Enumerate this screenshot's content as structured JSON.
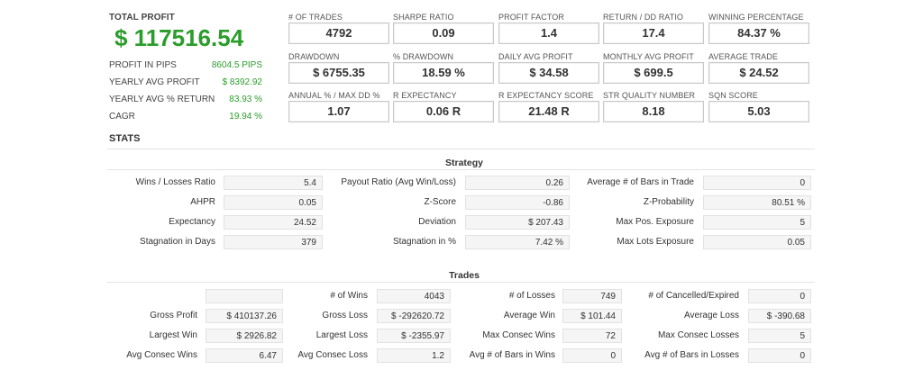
{
  "summary": {
    "total_profit_label": "TOTAL PROFIT",
    "total_profit_value": "$ 117516.54",
    "rows": [
      {
        "label": "PROFIT IN PIPS",
        "value": "8604.5 PIPS"
      },
      {
        "label": "YEARLY AVG PROFIT",
        "value": "$ 8392.92"
      },
      {
        "label": "YEARLY AVG % RETURN",
        "value": "83.93 %"
      },
      {
        "label": "CAGR",
        "value": "19.94 %"
      }
    ]
  },
  "metrics": [
    {
      "label": "# OF TRADES",
      "value": "4792"
    },
    {
      "label": "SHARPE RATIO",
      "value": "0.09"
    },
    {
      "label": "PROFIT FACTOR",
      "value": "1.4"
    },
    {
      "label": "RETURN / DD RATIO",
      "value": "17.4"
    },
    {
      "label": "WINNING PERCENTAGE",
      "value": "84.37 %"
    },
    {
      "label": "DRAWDOWN",
      "value": "$ 6755.35"
    },
    {
      "label": "% DRAWDOWN",
      "value": "18.59 %"
    },
    {
      "label": "DAILY AVG PROFIT",
      "value": "$ 34.58"
    },
    {
      "label": "MONTHLY AVG PROFIT",
      "value": "$ 699.5"
    },
    {
      "label": "AVERAGE TRADE",
      "value": "$ 24.52"
    },
    {
      "label": "ANNUAL % / MAX DD %",
      "value": "1.07"
    },
    {
      "label": "R EXPECTANCY",
      "value": "0.06 R"
    },
    {
      "label": "R EXPECTANCY SCORE",
      "value": "21.48 R"
    },
    {
      "label": "STR QUALITY NUMBER",
      "value": "8.18"
    },
    {
      "label": "SQN SCORE",
      "value": "5.03"
    }
  ],
  "stats_title": "STATS",
  "strategy": {
    "title": "Strategy",
    "rows": [
      [
        {
          "label": "Wins / Losses Ratio",
          "value": "5.4"
        },
        {
          "label": "Payout Ratio (Avg Win/Loss)",
          "value": "0.26"
        },
        {
          "label": "Average # of Bars in Trade",
          "value": "0"
        }
      ],
      [
        {
          "label": "AHPR",
          "value": "0.05"
        },
        {
          "label": "Z-Score",
          "value": "-0.86"
        },
        {
          "label": "Z-Probability",
          "value": "80.51 %"
        }
      ],
      [
        {
          "label": "Expectancy",
          "value": "24.52"
        },
        {
          "label": "Deviation",
          "value": "$ 207.43"
        },
        {
          "label": "Max Pos. Exposure",
          "value": "5"
        }
      ],
      [
        {
          "label": "Stagnation in Days",
          "value": "379"
        },
        {
          "label": "Stagnation in %",
          "value": "7.42 %"
        },
        {
          "label": "Max Lots Exposure",
          "value": "0.05"
        }
      ]
    ]
  },
  "trades": {
    "title": "Trades",
    "rows": [
      [
        {
          "label": "",
          "value": ""
        },
        {
          "label": "# of Wins",
          "value": "4043"
        },
        {
          "label": "# of Losses",
          "value": "749"
        },
        {
          "label": "# of Cancelled/Expired",
          "value": "0"
        }
      ],
      [
        {
          "label": "Gross Profit",
          "value": "$ 410137.26"
        },
        {
          "label": "Gross Loss",
          "value": "$ -292620.72"
        },
        {
          "label": "Average Win",
          "value": "$ 101.44"
        },
        {
          "label": "Average Loss",
          "value": "$ -390.68"
        }
      ],
      [
        {
          "label": "Largest Win",
          "value": "$ 2926.82"
        },
        {
          "label": "Largest Loss",
          "value": "$ -2355.97"
        },
        {
          "label": "Max Consec Wins",
          "value": "72"
        },
        {
          "label": "Max Consec Losses",
          "value": "5"
        }
      ],
      [
        {
          "label": "Avg Consec Wins",
          "value": "6.47"
        },
        {
          "label": "Avg Consec Loss",
          "value": "1.2"
        },
        {
          "label": "Avg # of Bars in Wins",
          "value": "0"
        },
        {
          "label": "Avg # of Bars in Losses",
          "value": "0"
        }
      ]
    ]
  },
  "colors": {
    "accent_green": "#2a9d2a"
  }
}
